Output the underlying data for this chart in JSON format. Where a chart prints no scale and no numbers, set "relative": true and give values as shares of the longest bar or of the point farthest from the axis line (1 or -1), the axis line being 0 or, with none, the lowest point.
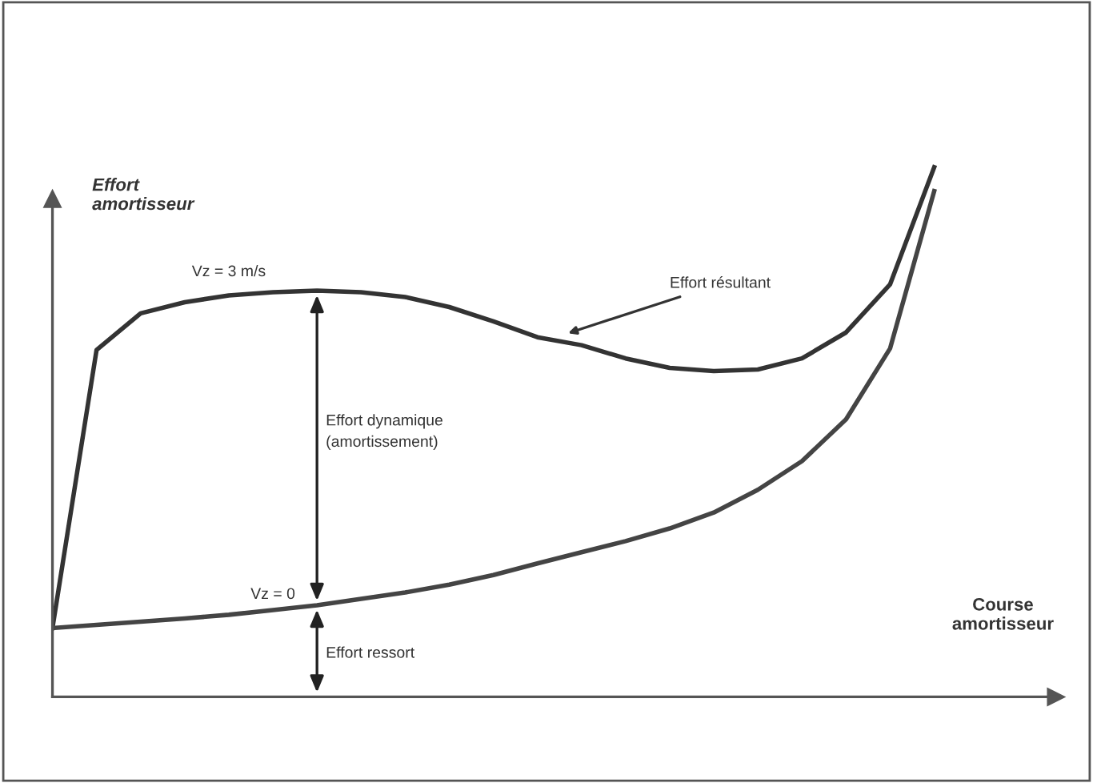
{
  "chart_data": {
    "type": "line",
    "relative": true,
    "xlabel": "Course\namortisseur",
    "ylabel": "Effort\namortisseur",
    "categories": [
      null,
      null,
      null,
      null,
      null,
      null,
      null,
      null,
      null,
      null,
      null,
      null,
      null,
      null,
      null,
      null,
      null,
      null,
      null,
      null,
      null
    ],
    "series": [
      {
        "name": "Vz = 3 m/s",
        "color": "#333333",
        "values": [
          0.13,
          0.655,
          0.724,
          0.745,
          0.758,
          0.764,
          0.767,
          0.764,
          0.755,
          0.736,
          0.709,
          0.679,
          0.664,
          0.639,
          0.621,
          0.615,
          0.618,
          0.639,
          0.688,
          0.779,
          1.0
        ]
      },
      {
        "name": "Vz = 0",
        "color": "#444444",
        "values": [
          0.13,
          0.136,
          0.142,
          0.148,
          0.155,
          0.164,
          0.173,
          0.185,
          0.197,
          0.212,
          0.23,
          0.252,
          0.273,
          0.294,
          0.318,
          0.348,
          0.391,
          0.445,
          0.524,
          0.658,
          0.955
        ]
      }
    ],
    "annotations": [
      "Effort résultant",
      "Effort dynamique\n(amortissement)",
      "Effort ressort"
    ],
    "legend": false,
    "marker": "none",
    "line_style": "solid"
  }
}
